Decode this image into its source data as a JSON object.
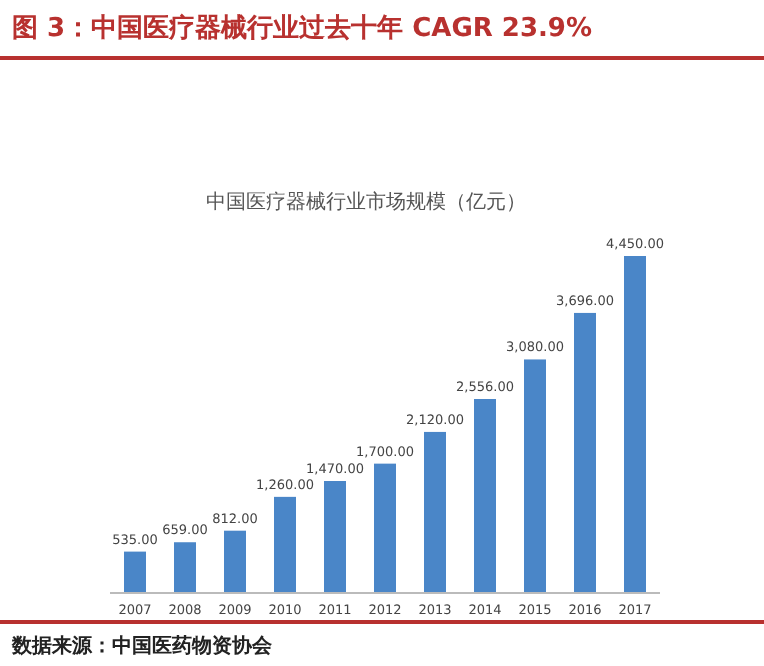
{
  "chart_data": {
    "type": "bar",
    "title": "图 3：中国医疗器械行业过去十年 CAGR 23.9%",
    "subtitle": "中国医疗器械行业市场规模（亿元）",
    "categories": [
      "2007",
      "2008",
      "2009",
      "2010",
      "2011",
      "2012",
      "2013",
      "2014",
      "2015",
      "2016",
      "2017"
    ],
    "values": [
      535,
      659,
      812,
      1260,
      1470,
      1700,
      2120,
      2556,
      3080,
      3696,
      4450
    ],
    "value_labels": [
      "535.00",
      "659.00",
      "812.00",
      "1,260.00",
      "1,470.00",
      "1,700.00",
      "2,120.00",
      "2,556.00",
      "3,080.00",
      "3,696.00",
      "4,450.00"
    ],
    "color": "#4a86c8",
    "annotations": [
      "数据来源：中国医药物资协会"
    ]
  }
}
